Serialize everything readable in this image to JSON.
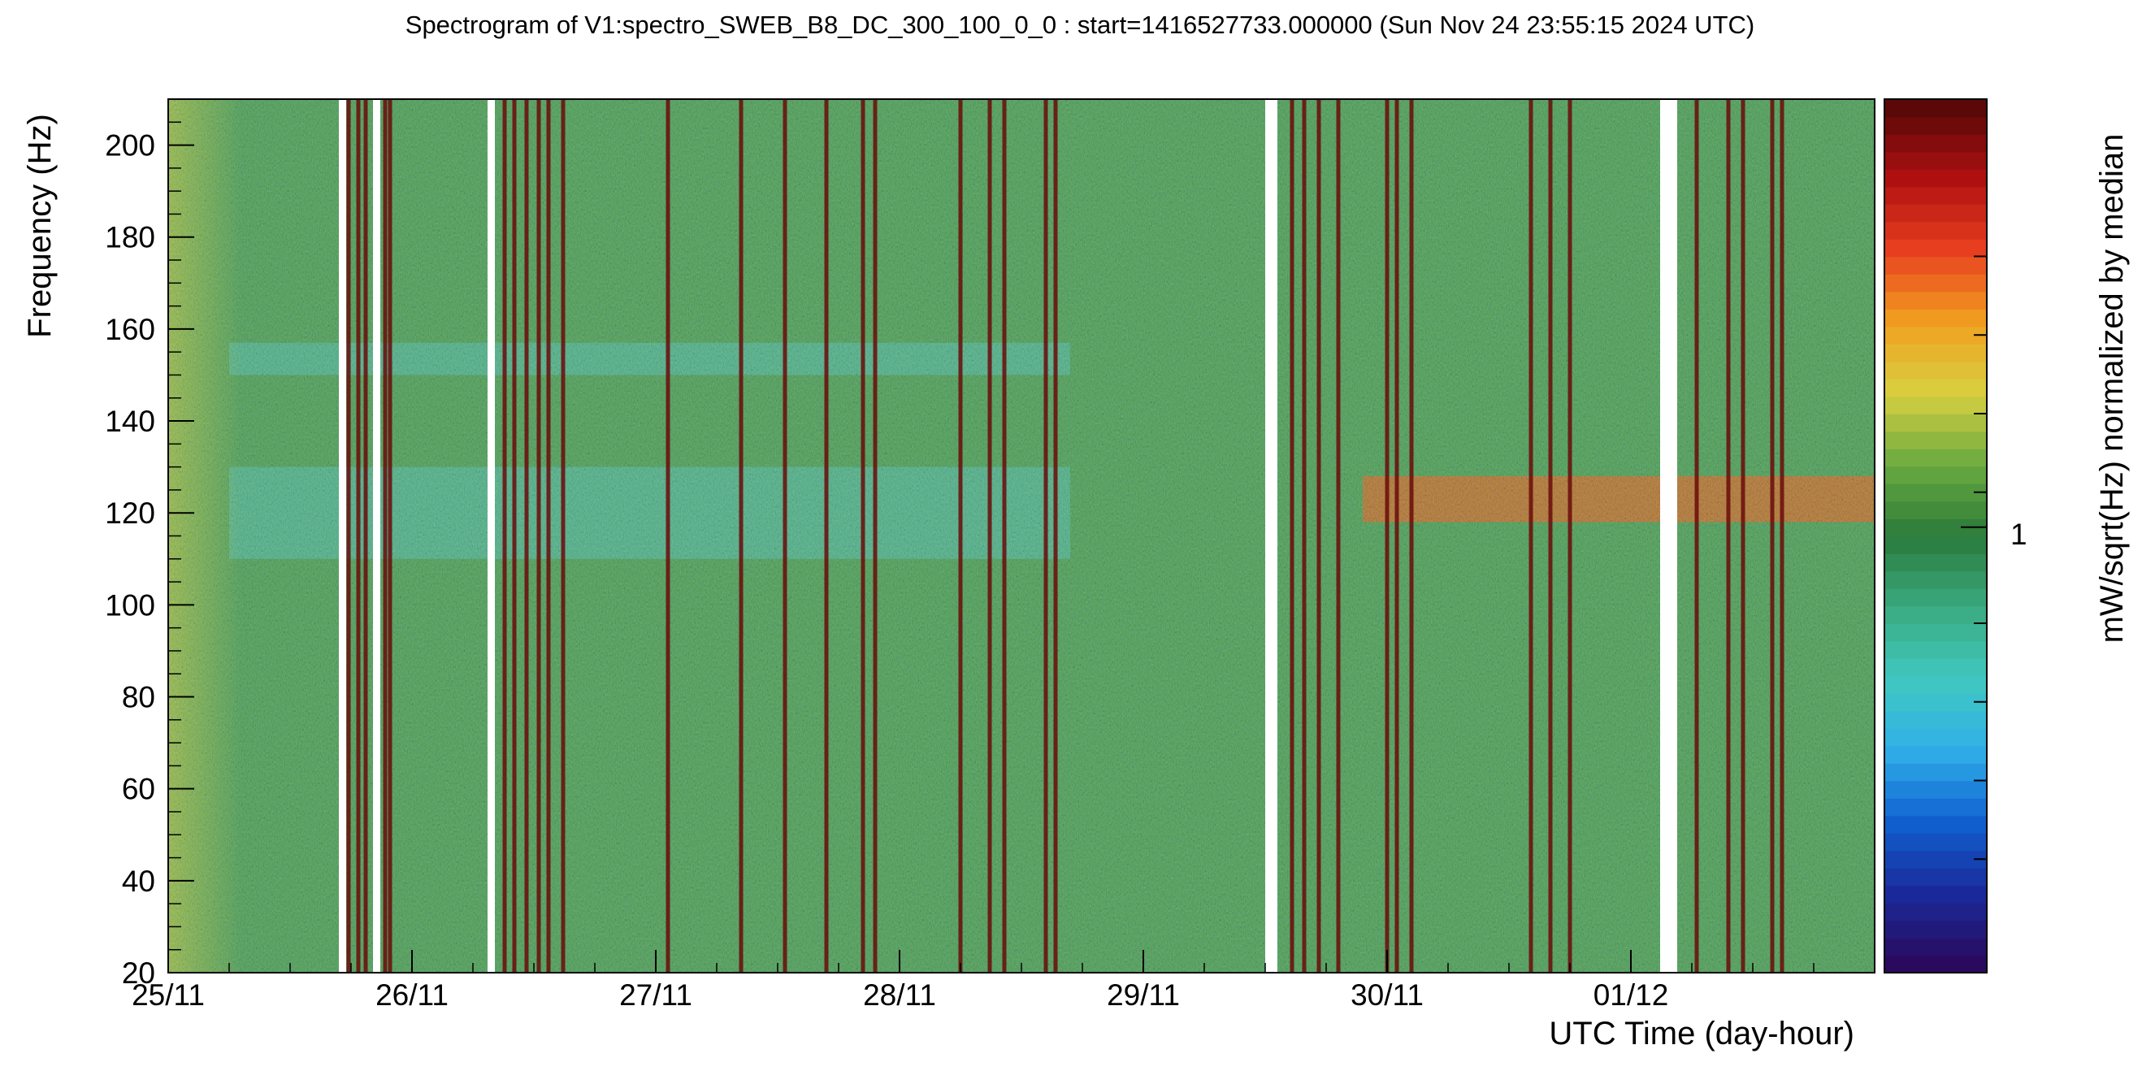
{
  "chart_data": {
    "type": "heatmap",
    "title": "Spectrogram of V1:spectro_SWEB_B8_DC_300_100_0_0 : start=1416527733.000000 (Sun Nov 24 23:55:15 2024 UTC)",
    "xlabel": "UTC Time (day-hour)",
    "ylabel": "Frequency (Hz)",
    "colorbar_label": "mW/sqrt(Hz) normalized by median",
    "x_unit": "days since 25/11 00:00",
    "xlim": [
      0,
      7.0
    ],
    "ylim": [
      20,
      210
    ],
    "x_ticks": [
      {
        "value": 0,
        "label": "25/11"
      },
      {
        "value": 1,
        "label": "26/11"
      },
      {
        "value": 2,
        "label": "27/11"
      },
      {
        "value": 3,
        "label": "28/11"
      },
      {
        "value": 4,
        "label": "29/11"
      },
      {
        "value": 5,
        "label": "30/11"
      },
      {
        "value": 6,
        "label": "01/12"
      }
    ],
    "y_ticks": [
      20,
      40,
      60,
      80,
      100,
      120,
      140,
      160,
      180,
      200
    ],
    "colorbar_tick_label": "1",
    "colorbar_scale": "log",
    "colorscale": [
      "#2a0a5e",
      "#1a2a9a",
      "#1060d0",
      "#30b0e8",
      "#40c8c0",
      "#3aaa80",
      "#2a7a3a",
      "#6aaa40",
      "#d8d040",
      "#f0a020",
      "#e84020",
      "#b01010",
      "#5a0808"
    ],
    "data_gaps": [
      {
        "start": 0.7,
        "end": 0.73
      },
      {
        "start": 0.84,
        "end": 0.87
      },
      {
        "start": 1.31,
        "end": 1.34
      },
      {
        "start": 4.5,
        "end": 4.55
      },
      {
        "start": 6.12,
        "end": 6.19
      }
    ],
    "broadband_glitches": [
      0.74,
      0.78,
      0.81,
      0.89,
      0.91,
      1.38,
      1.42,
      1.47,
      1.52,
      1.56,
      1.62,
      2.05,
      2.35,
      2.53,
      2.7,
      2.85,
      2.9,
      3.25,
      3.37,
      3.43,
      3.6,
      3.64,
      4.61,
      4.66,
      4.72,
      4.8,
      5.0,
      5.04,
      5.1,
      5.59,
      5.67,
      5.75,
      6.27,
      6.4,
      6.46,
      6.58,
      6.62
    ],
    "bands": [
      {
        "f_min": 110,
        "f_max": 130,
        "t_start": 0.25,
        "t_end": 3.7,
        "level": "low"
      },
      {
        "f_min": 150,
        "f_max": 157,
        "t_start": 0.25,
        "t_end": 3.7,
        "level": "low"
      },
      {
        "f_min": 118,
        "f_max": 128,
        "t_start": 4.9,
        "t_end": 7.0,
        "level": "high"
      }
    ]
  }
}
